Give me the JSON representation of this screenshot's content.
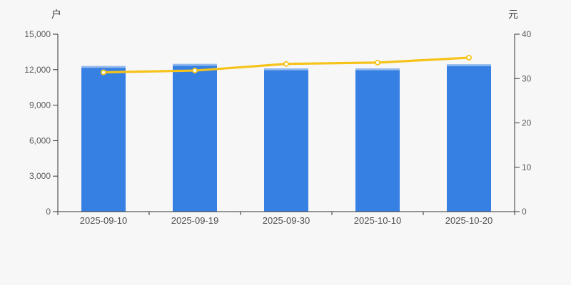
{
  "chart_data": {
    "type": "bar+line",
    "categories": [
      "2025-09-10",
      "2025-09-19",
      "2025-09-30",
      "2025-10-10",
      "2025-10-20"
    ],
    "series": [
      {
        "id": "bars",
        "type": "bar",
        "y_axis": "left",
        "values": [
          12300,
          12480,
          12100,
          12100,
          12450
        ]
      },
      {
        "id": "line",
        "type": "line",
        "y_axis": "right",
        "values": [
          31.4,
          31.8,
          33.3,
          33.6,
          34.7
        ]
      }
    ],
    "left_axis": {
      "unit": "户",
      "min": 0,
      "max": 15000,
      "ticks": [
        0,
        3000,
        6000,
        9000,
        12000,
        15000
      ],
      "tick_labels": [
        "0",
        "3,000",
        "6,000",
        "9,000",
        "12,000",
        "15,000"
      ]
    },
    "right_axis": {
      "unit": "元",
      "min": 0,
      "max": 40,
      "ticks": [
        0,
        10,
        20,
        30,
        40
      ],
      "tick_labels": [
        "0",
        "10",
        "20",
        "30",
        "40"
      ]
    },
    "legend": "none",
    "grid": "off",
    "colors": {
      "background": "#f7f7f7",
      "bar": "#3680e4",
      "bar_cap": "#92b9ee",
      "line": "#f5c31a",
      "marker_fill": "#ffffff",
      "axis_line": "#333333",
      "y_tick_label": "#5c5c5c",
      "x_tick_label": "#4d4d4d",
      "unit_label": "#404040"
    }
  }
}
